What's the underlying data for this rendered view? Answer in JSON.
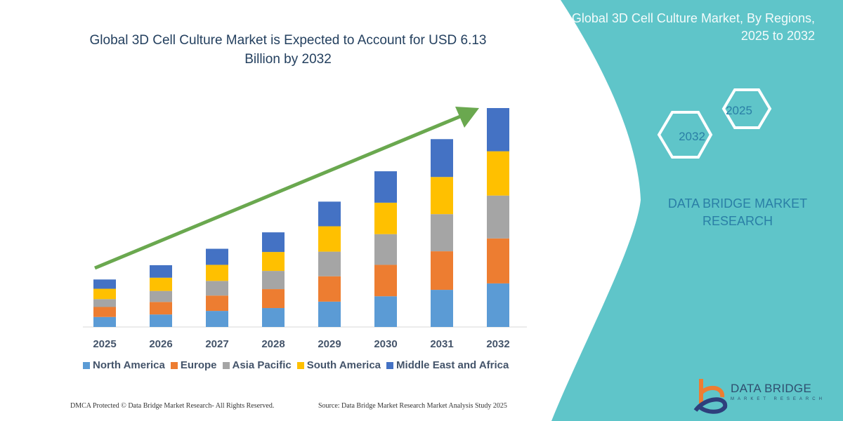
{
  "title": "Global 3D Cell Culture Market is Expected to Account for USD 6.13 Billion by 2032",
  "side_panel": {
    "title": "Global 3D Cell Culture Market, By Regions, 2025 to 2032",
    "hex_labels": [
      "2025",
      "2032"
    ],
    "brand_line1": "DATA BRIDGE MARKET",
    "brand_line2": "RESEARCH"
  },
  "footer": {
    "copyright": "DMCA Protected © Data Bridge Market Research- All Rights Reserved.",
    "source": "Source: Data Bridge Market Research Market Analysis Study 2025"
  },
  "logo": {
    "name": "DATA BRIDGE",
    "tagline": "MARKET RESEARCH"
  },
  "colors": {
    "panel": "#5fc5c9",
    "arrow": "#6aa84f"
  },
  "chart_data": {
    "type": "bar",
    "stacked": true,
    "title": "Global 3D Cell Culture Market is Expected to Account for USD 6.13 Billion by 2032",
    "unit": "USD Billion (estimated)",
    "categories": [
      "2025",
      "2026",
      "2027",
      "2028",
      "2029",
      "2030",
      "2031",
      "2032"
    ],
    "series": [
      {
        "name": "North America",
        "color": "#5b9bd5",
        "values": [
          0.28,
          0.35,
          0.45,
          0.53,
          0.71,
          0.86,
          1.04,
          1.22
        ]
      },
      {
        "name": "Europe",
        "color": "#ed7d31",
        "values": [
          0.28,
          0.35,
          0.43,
          0.53,
          0.71,
          0.88,
          1.08,
          1.26
        ]
      },
      {
        "name": "Asia Pacific",
        "color": "#a5a5a5",
        "values": [
          0.22,
          0.31,
          0.41,
          0.51,
          0.69,
          0.86,
          1.04,
          1.2
        ]
      },
      {
        "name": "South America",
        "color": "#ffc000",
        "values": [
          0.29,
          0.37,
          0.45,
          0.53,
          0.71,
          0.88,
          1.04,
          1.24
        ]
      },
      {
        "name": "Middle East and Africa",
        "color": "#4472c4",
        "values": [
          0.26,
          0.35,
          0.45,
          0.55,
          0.69,
          0.88,
          1.06,
          1.21
        ]
      }
    ],
    "ylim": [
      0,
      6.13
    ],
    "grid": false,
    "legend": "bottom",
    "trend_arrow": true
  }
}
